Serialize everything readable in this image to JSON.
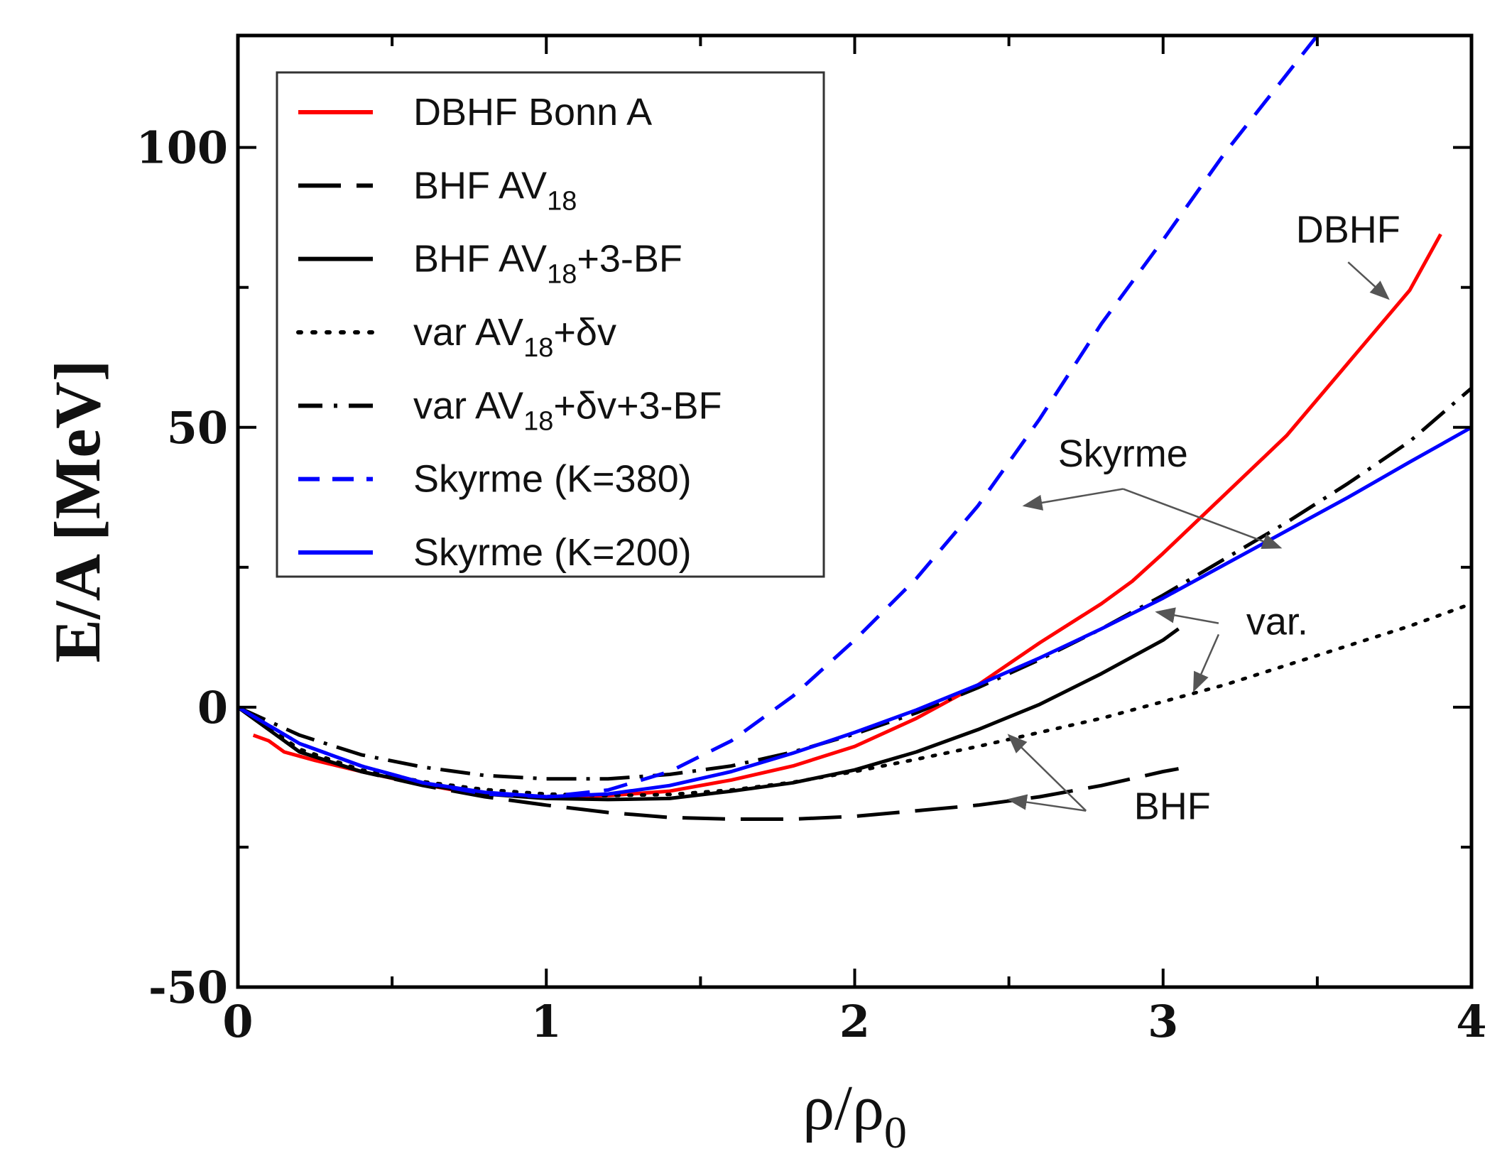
{
  "chart_data": {
    "type": "line",
    "title": "",
    "xlabel": {
      "base": "ρ/ρ",
      "sub": "0"
    },
    "ylabel": "E/A [MeV]",
    "xlim": [
      0,
      4
    ],
    "ylim": [
      -50,
      120
    ],
    "x_ticks": [
      {
        "value": 0,
        "label": "0"
      },
      {
        "value": 1,
        "label": "1"
      },
      {
        "value": 2,
        "label": "2"
      },
      {
        "value": 3,
        "label": "3"
      },
      {
        "value": 4,
        "label": "4"
      }
    ],
    "y_ticks": [
      {
        "value": -50,
        "label": "-50"
      },
      {
        "value": 0,
        "label": "0"
      },
      {
        "value": 50,
        "label": "50"
      },
      {
        "value": 100,
        "label": "100"
      }
    ],
    "x_minor_ticks": [
      0.5,
      1.5,
      2.5,
      3.5
    ],
    "y_minor_ticks": [
      -25,
      25,
      75
    ],
    "grid": false,
    "legend_position": "top-left",
    "series": [
      {
        "id": "dbhf",
        "name": "DBHF Bonn A",
        "legend": {
          "main": "DBHF Bonn A",
          "sub": "",
          "rest": ""
        },
        "color": "#ff0000",
        "style": "solid",
        "x": [
          0.05,
          0.1,
          0.15,
          0.25,
          0.4,
          0.55,
          0.7,
          0.85,
          1.0,
          1.2,
          1.4,
          1.6,
          1.8,
          2.0,
          2.2,
          2.4,
          2.6,
          2.8,
          2.9,
          3.0,
          3.2,
          3.4,
          3.6,
          3.8,
          3.9
        ],
        "y": [
          -5,
          -6,
          -8,
          -9.5,
          -11.5,
          -13.3,
          -14.8,
          -15.6,
          -16,
          -15.8,
          -15,
          -13,
          -10.5,
          -7,
          -2,
          4,
          11.5,
          18.5,
          22.5,
          27.5,
          38,
          48.5,
          61.5,
          74.5,
          84.5
        ]
      },
      {
        "id": "bhf",
        "name": "BHF AV18",
        "legend": {
          "main": "BHF AV",
          "sub": "18",
          "rest": ""
        },
        "color": "#000000",
        "style": "long-dash",
        "x": [
          0.0,
          0.2,
          0.4,
          0.6,
          0.8,
          1.0,
          1.2,
          1.4,
          1.6,
          1.8,
          2.0,
          2.2,
          2.4,
          2.6,
          2.8,
          3.0,
          3.05
        ],
        "y": [
          0,
          -8,
          -11.5,
          -14,
          -16,
          -17.5,
          -18.8,
          -19.7,
          -20,
          -20,
          -19.5,
          -18.5,
          -17.5,
          -16,
          -14,
          -11.5,
          -11
        ]
      },
      {
        "id": "bhf3bf",
        "name": "BHF AV18+3-BF",
        "legend": {
          "main": "BHF AV",
          "sub": "18",
          "rest": "+3-BF"
        },
        "color": "#000000",
        "style": "solid",
        "x": [
          0.0,
          0.2,
          0.4,
          0.6,
          0.8,
          1.0,
          1.2,
          1.4,
          1.6,
          1.8,
          2.0,
          2.2,
          2.4,
          2.6,
          2.8,
          3.0,
          3.05
        ],
        "y": [
          0,
          -8,
          -11.5,
          -13.8,
          -15.5,
          -16.3,
          -16.5,
          -16.3,
          -15,
          -13.5,
          -11.2,
          -8,
          -4,
          0.5,
          6,
          12,
          14
        ]
      },
      {
        "id": "var",
        "name": "var AV18+δv",
        "legend": {
          "main": "var AV",
          "sub": "18",
          "rest": "+δv"
        },
        "color": "#000000",
        "style": "dotted",
        "x": [
          0.0,
          0.2,
          0.4,
          0.6,
          0.8,
          1.0,
          1.2,
          1.4,
          1.6,
          1.8,
          2.0,
          2.2,
          2.4,
          2.6,
          2.8,
          3.0,
          3.2,
          3.4,
          3.6,
          3.8,
          4.0
        ],
        "y": [
          0,
          -7.5,
          -11.2,
          -13.3,
          -14.7,
          -15.5,
          -15.8,
          -15.6,
          -14.8,
          -13.4,
          -11.5,
          -9.3,
          -7,
          -4.5,
          -2,
          1,
          4,
          7.5,
          11,
          14.5,
          18.5
        ]
      },
      {
        "id": "var3bf",
        "name": "var AV18+δv+3-BF",
        "legend": {
          "main": "var AV",
          "sub": "18",
          "rest": "+δv+3-BF"
        },
        "color": "#000000",
        "style": "dash-dot",
        "x": [
          0.0,
          0.2,
          0.4,
          0.6,
          0.8,
          1.0,
          1.2,
          1.4,
          1.6,
          1.8,
          2.0,
          2.2,
          2.4,
          2.6,
          2.8,
          3.0,
          3.2,
          3.4,
          3.6,
          3.8,
          4.0
        ],
        "y": [
          0,
          -5,
          -8.5,
          -10.7,
          -12.2,
          -12.8,
          -12.8,
          -12,
          -10.5,
          -8,
          -4.8,
          -1,
          3.5,
          8.5,
          14,
          20,
          26.5,
          33,
          40,
          47.5,
          57
        ]
      },
      {
        "id": "sky380",
        "name": "Skyrme (K=380)",
        "legend": {
          "main": "Skyrme (K=380)",
          "sub": "",
          "rest": ""
        },
        "color": "#0000ff",
        "style": "dashed",
        "x": [
          0.0,
          0.2,
          0.4,
          0.6,
          0.8,
          1.0,
          1.2,
          1.4,
          1.6,
          1.8,
          2.0,
          2.2,
          2.4,
          2.6,
          2.8,
          3.0,
          3.2,
          3.4,
          3.5
        ],
        "y": [
          0,
          -6.5,
          -10.5,
          -13.5,
          -15.5,
          -16,
          -14.8,
          -11.5,
          -6,
          2,
          12,
          23,
          36,
          51.5,
          68.5,
          83.5,
          99,
          113,
          120
        ]
      },
      {
        "id": "sky200",
        "name": "Skyrme (K=200)",
        "legend": {
          "main": "Skyrme (K=200)",
          "sub": "",
          "rest": ""
        },
        "color": "#0000ff",
        "style": "solid",
        "x": [
          0.0,
          0.2,
          0.4,
          0.6,
          0.8,
          1.0,
          1.2,
          1.4,
          1.6,
          1.8,
          2.0,
          2.2,
          2.4,
          2.6,
          2.8,
          3.0,
          3.2,
          3.4,
          3.6,
          3.8,
          4.0
        ],
        "y": [
          0,
          -6.5,
          -10.5,
          -13.5,
          -15.2,
          -16,
          -15.5,
          -14,
          -11.5,
          -8.2,
          -4.5,
          -0.5,
          4,
          8.8,
          14,
          19.5,
          25.5,
          31.5,
          37.5,
          43.8,
          50
        ]
      }
    ],
    "annotations": [
      {
        "text": "DBHF",
        "text_at": [
          3.6,
          83
        ],
        "arrows": [
          {
            "from": [
              3.6,
              79.5
            ],
            "to": [
              3.73,
              73
            ]
          }
        ]
      },
      {
        "text": "Skyrme",
        "text_at": [
          2.87,
          43
        ],
        "arrows": [
          {
            "from": [
              2.87,
              39
            ],
            "to": [
              2.55,
              36
            ]
          },
          {
            "from": [
              2.87,
              39
            ],
            "to": [
              3.38,
              28.5
            ]
          }
        ]
      },
      {
        "text": "var.",
        "text_at": [
          3.37,
          13
        ],
        "arrows": [
          {
            "from": [
              3.18,
              15
            ],
            "to": [
              2.98,
              17
            ]
          },
          {
            "from": [
              3.18,
              13
            ],
            "to": [
              3.1,
              3
            ]
          }
        ]
      },
      {
        "text": "BHF",
        "text_at": [
          3.03,
          -20
        ],
        "arrows": [
          {
            "from": [
              2.75,
              -18.5
            ],
            "to": [
              2.5,
              -5
            ]
          },
          {
            "from": [
              2.75,
              -18.5
            ],
            "to": [
              2.5,
              -16.5
            ]
          }
        ]
      }
    ]
  }
}
